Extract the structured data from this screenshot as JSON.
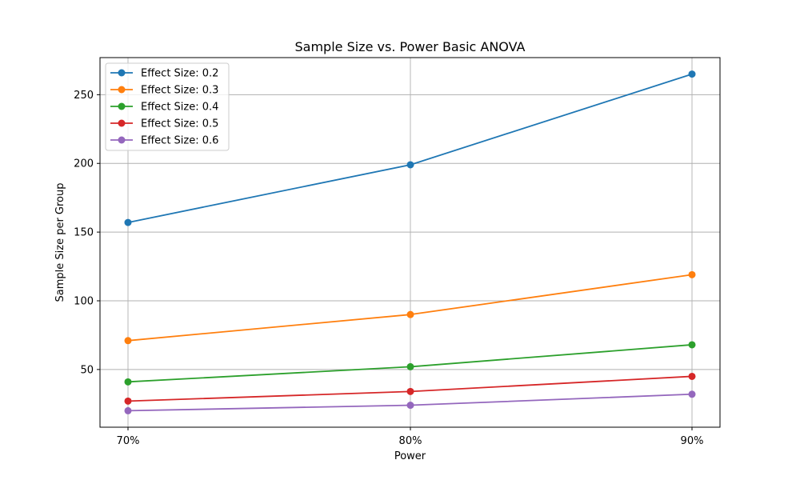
{
  "chart_data": {
    "type": "line",
    "title": "Sample Size vs. Power Basic ANOVA",
    "xlabel": "Power",
    "ylabel": "Sample Size per Group",
    "categories": [
      "70%",
      "80%",
      "90%"
    ],
    "y_ticks": [
      50,
      100,
      150,
      200,
      250
    ],
    "ylim": [
      8,
      277
    ],
    "grid": true,
    "legend_position": "top-left",
    "series": [
      {
        "name": "Effect Size: 0.2",
        "color": "#1f77b4",
        "values": [
          157,
          199,
          265
        ]
      },
      {
        "name": "Effect Size: 0.3",
        "color": "#ff7f0e",
        "values": [
          71,
          90,
          119
        ]
      },
      {
        "name": "Effect Size: 0.4",
        "color": "#2ca02c",
        "values": [
          41,
          52,
          68
        ]
      },
      {
        "name": "Effect Size: 0.5",
        "color": "#d62728",
        "values": [
          27,
          34,
          45
        ]
      },
      {
        "name": "Effect Size: 0.6",
        "color": "#9467bd",
        "values": [
          20,
          24,
          32
        ]
      }
    ]
  }
}
